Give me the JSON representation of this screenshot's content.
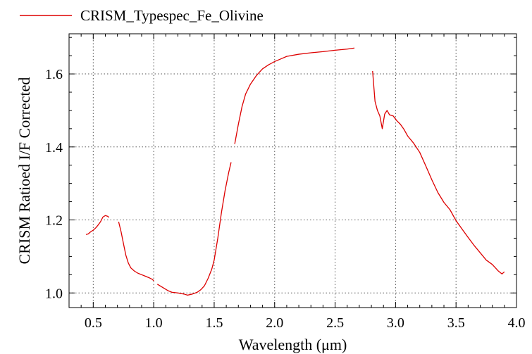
{
  "chart_data": {
    "type": "line",
    "title": "",
    "xlabel": "Wavelength (μm)",
    "ylabel": "CRISM Ratioed I/F Corrected",
    "xlim": [
      0.3,
      4.0
    ],
    "ylim": [
      0.96,
      1.71
    ],
    "grid": true,
    "legend": "top-left",
    "x_ticks": [
      0.5,
      1.0,
      1.5,
      2.0,
      2.5,
      3.0,
      3.5,
      4.0
    ],
    "x_tick_labels": [
      "0.5",
      "1.0",
      "1.5",
      "2.0",
      "2.5",
      "3.0",
      "3.5",
      "4.0"
    ],
    "y_ticks": [
      1.0,
      1.2,
      1.4,
      1.6
    ],
    "y_tick_labels": [
      "1.0",
      "1.2",
      "1.4",
      "1.6"
    ],
    "series": [
      {
        "name": "CRISM_Typespec_Fe_Olivine",
        "color": "#dd0000",
        "segments": [
          [
            [
              0.44,
              1.16
            ],
            [
              0.46,
              1.162
            ],
            [
              0.48,
              1.168
            ],
            [
              0.5,
              1.172
            ],
            [
              0.52,
              1.178
            ],
            [
              0.54,
              1.186
            ],
            [
              0.56,
              1.195
            ],
            [
              0.58,
              1.208
            ],
            [
              0.6,
              1.212
            ],
            [
              0.62,
              1.21
            ],
            [
              0.63,
              1.207
            ]
          ],
          [
            [
              0.71,
              1.195
            ],
            [
              0.73,
              1.168
            ],
            [
              0.75,
              1.135
            ],
            [
              0.77,
              1.103
            ],
            [
              0.79,
              1.082
            ],
            [
              0.81,
              1.069
            ],
            [
              0.84,
              1.06
            ],
            [
              0.87,
              1.054
            ],
            [
              0.9,
              1.05
            ],
            [
              0.93,
              1.046
            ],
            [
              0.96,
              1.042
            ],
            [
              0.99,
              1.037
            ],
            [
              1.0,
              1.033
            ]
          ],
          [
            [
              1.03,
              1.024
            ],
            [
              1.06,
              1.018
            ],
            [
              1.09,
              1.012
            ],
            [
              1.12,
              1.006
            ],
            [
              1.15,
              1.002
            ],
            [
              1.2,
              1.0
            ],
            [
              1.25,
              0.997
            ],
            [
              1.28,
              0.994
            ],
            [
              1.32,
              0.997
            ],
            [
              1.36,
              1.002
            ],
            [
              1.39,
              1.009
            ],
            [
              1.42,
              1.02
            ],
            [
              1.45,
              1.04
            ],
            [
              1.48,
              1.065
            ],
            [
              1.5,
              1.09
            ],
            [
              1.53,
              1.15
            ],
            [
              1.56,
              1.22
            ],
            [
              1.59,
              1.28
            ],
            [
              1.62,
              1.33
            ],
            [
              1.64,
              1.358
            ]
          ],
          [
            [
              1.67,
              1.408
            ],
            [
              1.7,
              1.462
            ],
            [
              1.73,
              1.51
            ],
            [
              1.76,
              1.545
            ],
            [
              1.8,
              1.572
            ],
            [
              1.85,
              1.596
            ],
            [
              1.9,
              1.614
            ],
            [
              1.95,
              1.625
            ],
            [
              2.0,
              1.634
            ],
            [
              2.05,
              1.641
            ],
            [
              2.1,
              1.648
            ],
            [
              2.2,
              1.654
            ],
            [
              2.3,
              1.658
            ],
            [
              2.4,
              1.661
            ],
            [
              2.5,
              1.665
            ],
            [
              2.6,
              1.668
            ],
            [
              2.66,
              1.671
            ]
          ],
          [
            [
              2.81,
              1.608
            ],
            [
              2.83,
              1.525
            ],
            [
              2.85,
              1.5
            ],
            [
              2.87,
              1.485
            ],
            [
              2.89,
              1.45
            ],
            [
              2.91,
              1.49
            ],
            [
              2.93,
              1.5
            ],
            [
              2.95,
              1.488
            ],
            [
              2.98,
              1.485
            ],
            [
              3.01,
              1.472
            ],
            [
              3.04,
              1.462
            ],
            [
              3.07,
              1.448
            ],
            [
              3.1,
              1.43
            ],
            [
              3.15,
              1.41
            ],
            [
              3.2,
              1.385
            ],
            [
              3.25,
              1.348
            ],
            [
              3.3,
              1.31
            ],
            [
              3.35,
              1.275
            ],
            [
              3.4,
              1.248
            ],
            [
              3.45,
              1.228
            ],
            [
              3.5,
              1.198
            ],
            [
              3.55,
              1.175
            ],
            [
              3.6,
              1.152
            ],
            [
              3.65,
              1.13
            ],
            [
              3.7,
              1.11
            ],
            [
              3.75,
              1.09
            ],
            [
              3.8,
              1.078
            ],
            [
              3.85,
              1.06
            ],
            [
              3.88,
              1.052
            ],
            [
              3.9,
              1.058
            ]
          ]
        ]
      }
    ]
  }
}
